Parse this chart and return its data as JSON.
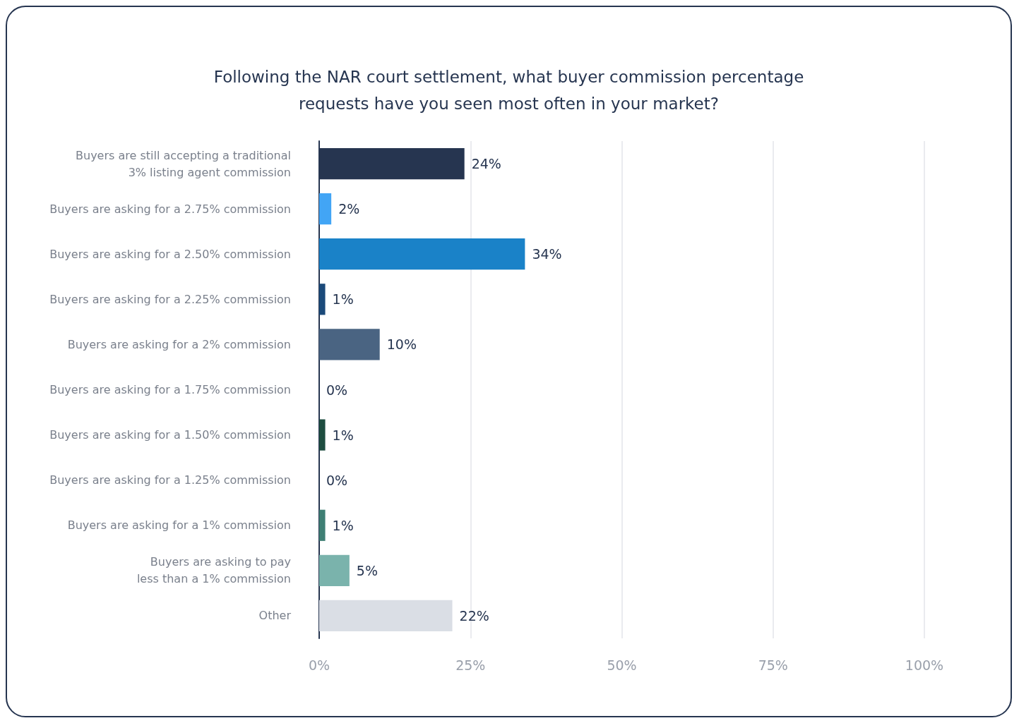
{
  "chart_data": {
    "type": "bar",
    "orientation": "horizontal",
    "title": "Following the NAR court settlement, what buyer commission percentage\nrequests have you seen most often in your market?",
    "categories": [
      "Buyers are still accepting a traditional\n3% listing agent commission",
      "Buyers are asking for a 2.75% commission",
      "Buyers are asking for a 2.50% commission",
      "Buyers are asking for a 2.25% commission",
      "Buyers are asking for a 2% commission",
      "Buyers are asking for a 1.75% commission",
      "Buyers are asking for a 1.50% commission",
      "Buyers are asking for a 1.25% commission",
      "Buyers are asking for a 1% commission",
      "Buyers are asking to pay\nless than a 1% commission",
      "Other"
    ],
    "values": [
      24,
      2,
      34,
      1,
      10,
      0,
      1,
      0,
      1,
      5,
      22
    ],
    "value_labels": [
      "24%",
      "2%",
      "34%",
      "1%",
      "10%",
      "0%",
      "1%",
      "0%",
      "1%",
      "5%",
      "22%"
    ],
    "colors": [
      "#263550",
      "#42a5f5",
      "#1a82c8",
      "#1b4a7a",
      "#4a6482",
      "#3a4a5a",
      "#1e4d40",
      "#3a4a5a",
      "#3f7f74",
      "#7ab3ac",
      "#dadee5"
    ],
    "xlim": [
      0,
      100
    ],
    "xticks": [
      {
        "value": 0,
        "label": "0%"
      },
      {
        "value": 25,
        "label": "25%"
      },
      {
        "value": 50,
        "label": "50%"
      },
      {
        "value": 75,
        "label": "75%"
      },
      {
        "value": 100,
        "label": "100%"
      }
    ],
    "grid": "x"
  }
}
